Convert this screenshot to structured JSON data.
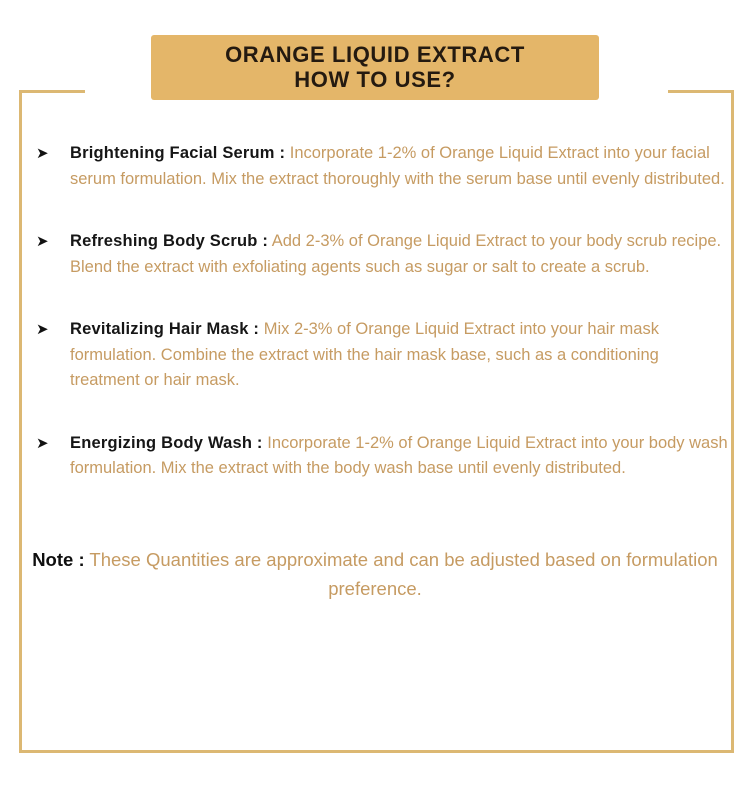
{
  "colors": {
    "banner_bg": "#e4b669",
    "frame_gold": "#dcb873",
    "accent_text_gold": "#c69b62",
    "title_text": "#241a10",
    "label_text": "#161616"
  },
  "header": {
    "title_line1": "ORANGE LIQUID EXTRACT",
    "title_line2": "HOW TO USE?"
  },
  "bullet_icon": "➤",
  "bullets": [
    {
      "label": "Brightening Facial Serum :",
      "description": "Incorporate 1-2% of Orange Liquid Extract into your facial serum formulation. Mix the extract thoroughly with the serum base until evenly distributed."
    },
    {
      "label": "Refreshing Body Scrub :",
      "description": "Add 2-3% of Orange Liquid Extract to your body scrub recipe. Blend the extract with exfoliating agents such as sugar or salt to create a scrub."
    },
    {
      "label": "Revitalizing Hair Mask :",
      "description": "Mix 2-3% of Orange Liquid Extract into your hair mask formulation. Combine the extract with the hair mask base, such as a conditioning treatment or hair mask."
    },
    {
      "label": "Energizing Body Wash :",
      "description": "Incorporate 1-2% of Orange Liquid Extract into your body wash formulation. Mix the extract with the body wash base until evenly distributed."
    }
  ],
  "note": {
    "label": "Note :",
    "text": "These Quantities are approximate and can be adjusted based on formulation preference."
  }
}
